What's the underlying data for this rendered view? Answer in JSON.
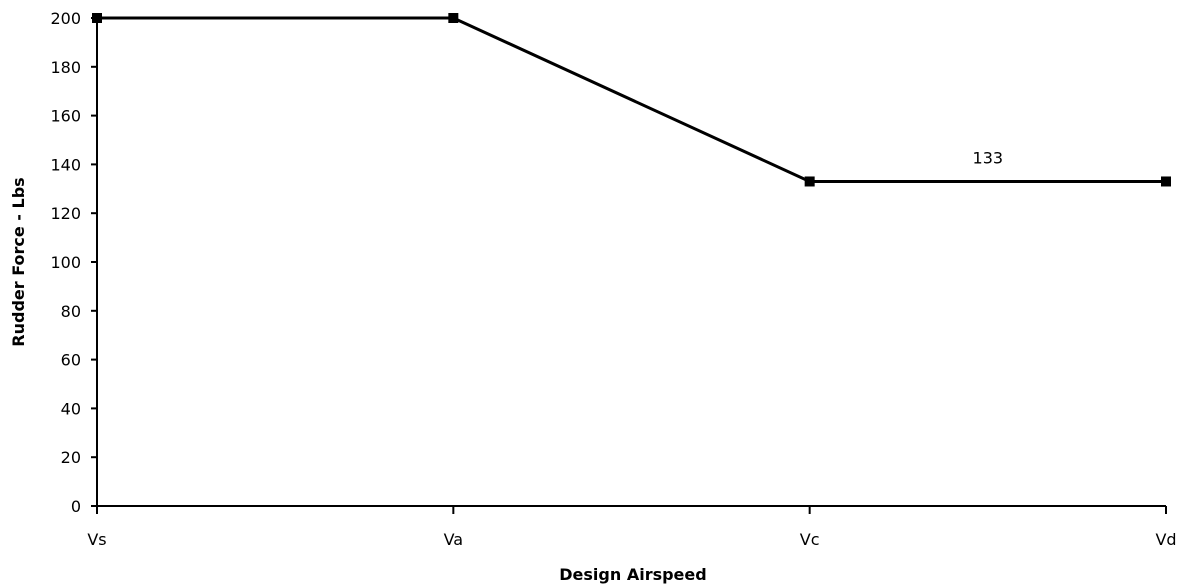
{
  "chart_data": {
    "type": "line",
    "title": "",
    "xlabel": "Design Airspeed",
    "ylabel": "Rudder Force - Lbs",
    "categories": [
      "Vs",
      "Va",
      "Vc",
      "Vd"
    ],
    "series": [
      {
        "values": [
          200,
          200,
          133,
          133
        ]
      }
    ],
    "ylim": [
      0,
      200
    ],
    "yticks": [
      0,
      20,
      40,
      60,
      80,
      100,
      120,
      140,
      160,
      180,
      200
    ],
    "annotations": [
      {
        "text": "133",
        "between": [
          "Vc",
          "Vd"
        ],
        "value": 133
      }
    ],
    "grid": false,
    "legend": "none",
    "colors": {
      "line": "#000000",
      "marker": "#000000"
    }
  }
}
